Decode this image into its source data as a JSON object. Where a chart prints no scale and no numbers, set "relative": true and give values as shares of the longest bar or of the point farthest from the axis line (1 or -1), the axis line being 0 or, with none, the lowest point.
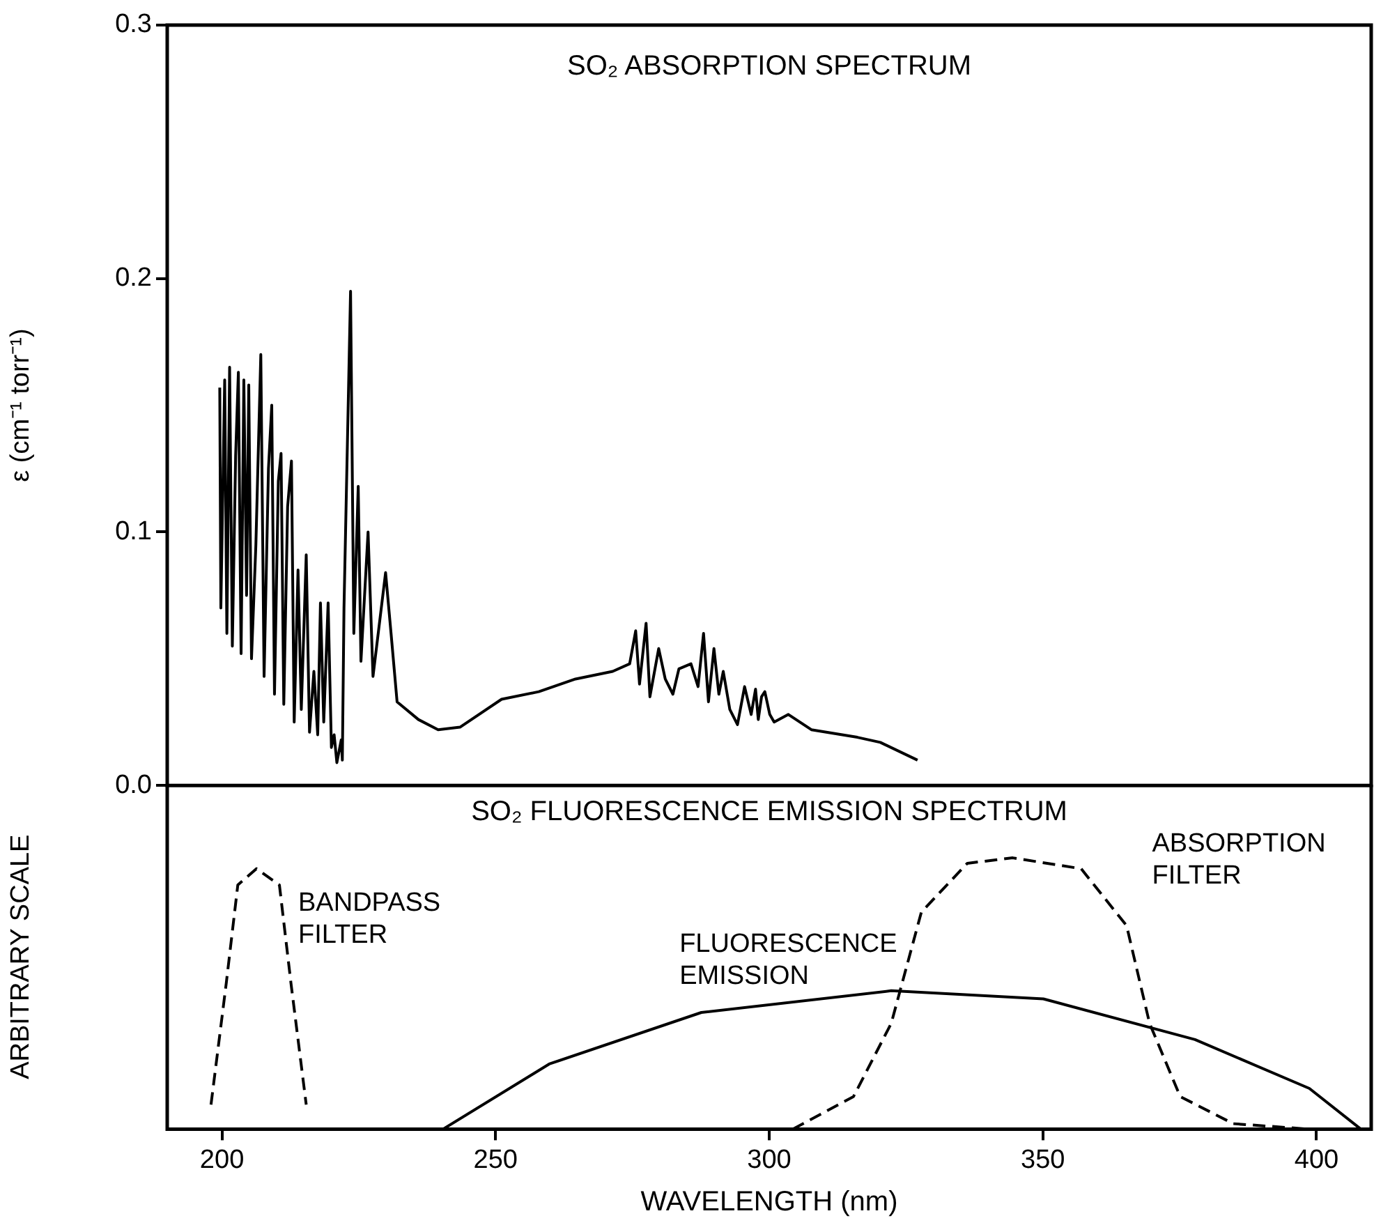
{
  "chart_data": [
    {
      "type": "line",
      "title": "SO₂ ABSORPTION SPECTRUM",
      "ylabel": "ε (cm⁻¹ torr⁻¹)",
      "xlim": [
        190,
        410
      ],
      "xticks": [
        200,
        250,
        300,
        350,
        400
      ],
      "ylim": [
        0,
        0.3
      ],
      "yticks": [
        {
          "value": 0,
          "label": "0.0"
        },
        {
          "value": 0.1,
          "label": "0.1"
        },
        {
          "value": 0.2,
          "label": "0.2"
        },
        {
          "value": 0.3,
          "label": "0.3"
        }
      ],
      "tick_labels": "y",
      "grid": false,
      "legend": false,
      "marker": "none",
      "series": [
        {
          "color": "#000000",
          "line_style": "solid",
          "x": [
            199.6,
            199.8,
            200.5,
            200.9,
            201.4,
            201.9,
            202.5,
            203.0,
            203.5,
            204.0,
            204.5,
            204.9,
            205.4,
            206.2,
            207.1,
            207.7,
            208.5,
            209.1,
            209.6,
            210.3,
            210.8,
            211.3,
            212.0,
            212.7,
            213.2,
            213.9,
            214.5,
            215.4,
            216.0,
            216.8,
            217.5,
            218.0,
            218.6,
            219.4,
            220.0,
            220.5,
            221.0,
            221.8,
            222.0,
            222.3,
            223.5,
            224.1,
            224.9,
            225.4,
            226.7,
            227.6,
            229.9,
            230.9,
            232.0,
            235.9,
            239.5,
            243.5,
            251.1,
            257.9,
            264.6,
            271.4,
            274.5,
            275.6,
            276.3,
            277.5,
            278.2,
            279.8,
            281.0,
            282.4,
            283.5,
            285.7,
            287.0,
            288.0,
            288.9,
            289.9,
            290.8,
            291.6,
            292.8,
            294.2,
            295.5,
            296.7,
            297.5,
            298.0,
            298.6,
            299.2,
            300.1,
            300.9,
            303.5,
            307.7,
            316.1,
            320.3,
            327.1
          ],
          "values": [
            0.157,
            0.07,
            0.16,
            0.06,
            0.165,
            0.055,
            0.13,
            0.163,
            0.052,
            0.16,
            0.075,
            0.158,
            0.05,
            0.095,
            0.17,
            0.043,
            0.125,
            0.15,
            0.036,
            0.12,
            0.131,
            0.032,
            0.11,
            0.128,
            0.025,
            0.085,
            0.03,
            0.091,
            0.021,
            0.045,
            0.02,
            0.072,
            0.025,
            0.072,
            0.015,
            0.02,
            0.009,
            0.018,
            0.01,
            0.07,
            0.195,
            0.06,
            0.118,
            0.049,
            0.1,
            0.043,
            0.084,
            0.06,
            0.033,
            0.026,
            0.022,
            0.023,
            0.034,
            0.037,
            0.042,
            0.045,
            0.048,
            0.061,
            0.04,
            0.064,
            0.035,
            0.054,
            0.042,
            0.036,
            0.046,
            0.048,
            0.039,
            0.06,
            0.033,
            0.054,
            0.036,
            0.045,
            0.03,
            0.024,
            0.039,
            0.028,
            0.038,
            0.026,
            0.035,
            0.037,
            0.028,
            0.025,
            0.028,
            0.022,
            0.019,
            0.017,
            0.01
          ]
        }
      ]
    },
    {
      "type": "line",
      "title": "SO₂ FLUORESCENCE EMISSION SPECTRUM",
      "xlabel": "WAVELENGTH (nm)",
      "ylabel": "ARBITRARY SCALE",
      "xlim": [
        190,
        410
      ],
      "xticks": [
        200,
        250,
        300,
        350,
        400
      ],
      "relative": true,
      "tick_labels": "x",
      "grid": false,
      "legend": false,
      "marker": "none",
      "series": [
        {
          "name": "BANDPASS FILTER",
          "color": "#000000",
          "line_style": "dashed",
          "x": [
            198.0,
            200.8,
            202.9,
            206.3,
            210.5,
            212.6,
            215.4
          ],
          "values": [
            0.09,
            0.54,
            0.9,
            0.96,
            0.9,
            0.54,
            0.09
          ]
        },
        {
          "name": "FLUORESCENCE EMISSION",
          "color": "#000000",
          "line_style": "solid",
          "x": [
            240.4,
            259.8,
            287.6,
            322.3,
            350.1,
            377.8,
            398.7,
            408.1
          ],
          "values": [
            0,
            0.24,
            0.43,
            0.51,
            0.48,
            0.33,
            0.15,
            0
          ]
        },
        {
          "name": "ABSORPTION FILTER",
          "color": "#000000",
          "line_style": "dashed",
          "x": [
            304.3,
            315.4,
            322.3,
            327.8,
            336.2,
            344.5,
            357.0,
            365.3,
            369.5,
            375.1,
            384.8,
            398.7
          ],
          "values": [
            0,
            0.12,
            0.39,
            0.8,
            0.98,
            1,
            0.96,
            0.75,
            0.39,
            0.12,
            0.02,
            0
          ]
        }
      ]
    }
  ]
}
